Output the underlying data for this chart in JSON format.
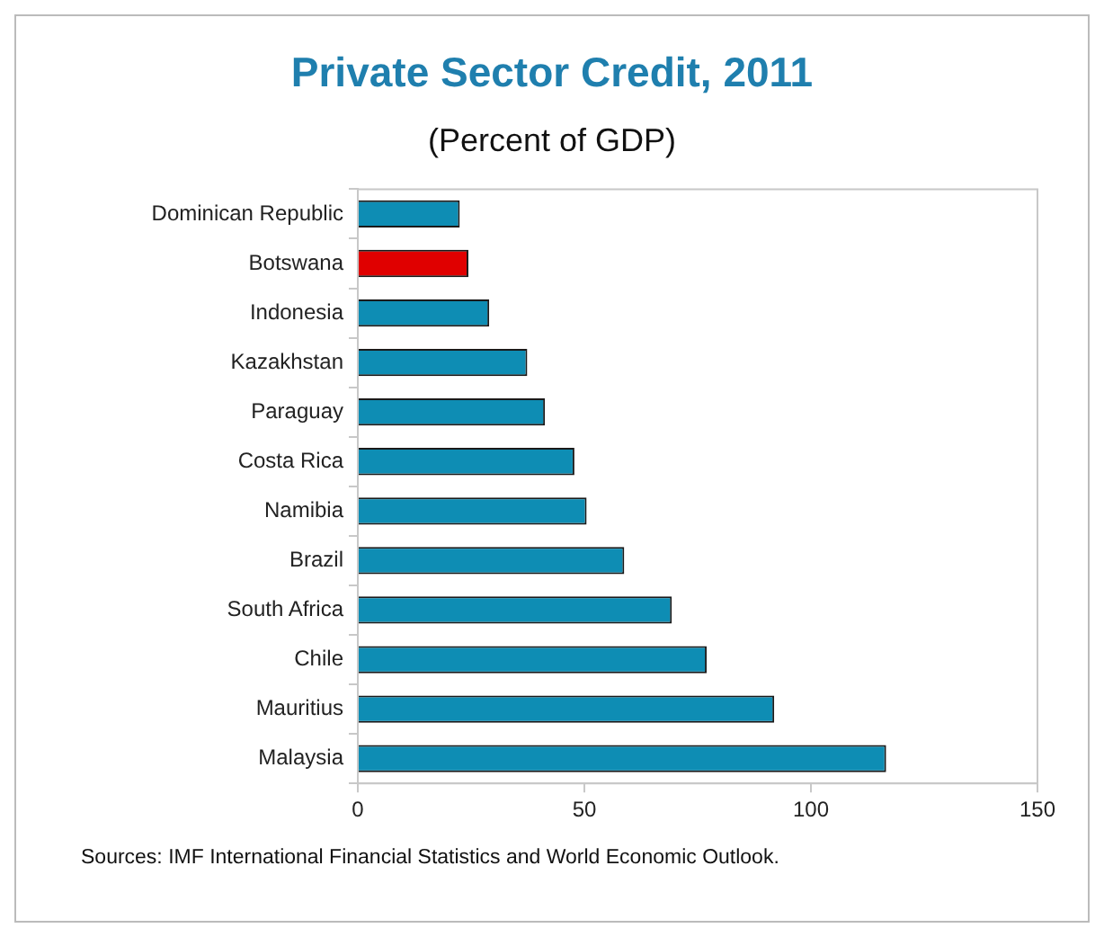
{
  "chart_data": {
    "type": "bar",
    "orientation": "horizontal",
    "title": "Private Sector Credit, 2011",
    "subtitle": "(Percent of GDP)",
    "categories": [
      "Dominican Republic",
      "Botswana",
      "Indonesia",
      "Kazakhstan",
      "Paraguay",
      "Costa Rica",
      "Namibia",
      "Brazil",
      "South Africa",
      "Chile",
      "Mauritius",
      "Malaysia"
    ],
    "values": [
      22.5,
      24.4,
      29,
      37.4,
      41.3,
      47.8,
      50.5,
      58.8,
      69.3,
      77,
      91.9,
      116.6
    ],
    "colors": [
      "#0e8db4",
      "#e00000",
      "#0e8db4",
      "#0e8db4",
      "#0e8db4",
      "#0e8db4",
      "#0e8db4",
      "#0e8db4",
      "#0e8db4",
      "#0e8db4",
      "#0e8db4",
      "#0e8db4"
    ],
    "xlim": [
      0,
      150
    ],
    "xticks": [
      0,
      50,
      100,
      150
    ],
    "grid": false,
    "legend": false,
    "annotations": [
      "Sources: IMF International Financial Statistics and World Economic Outlook."
    ]
  }
}
